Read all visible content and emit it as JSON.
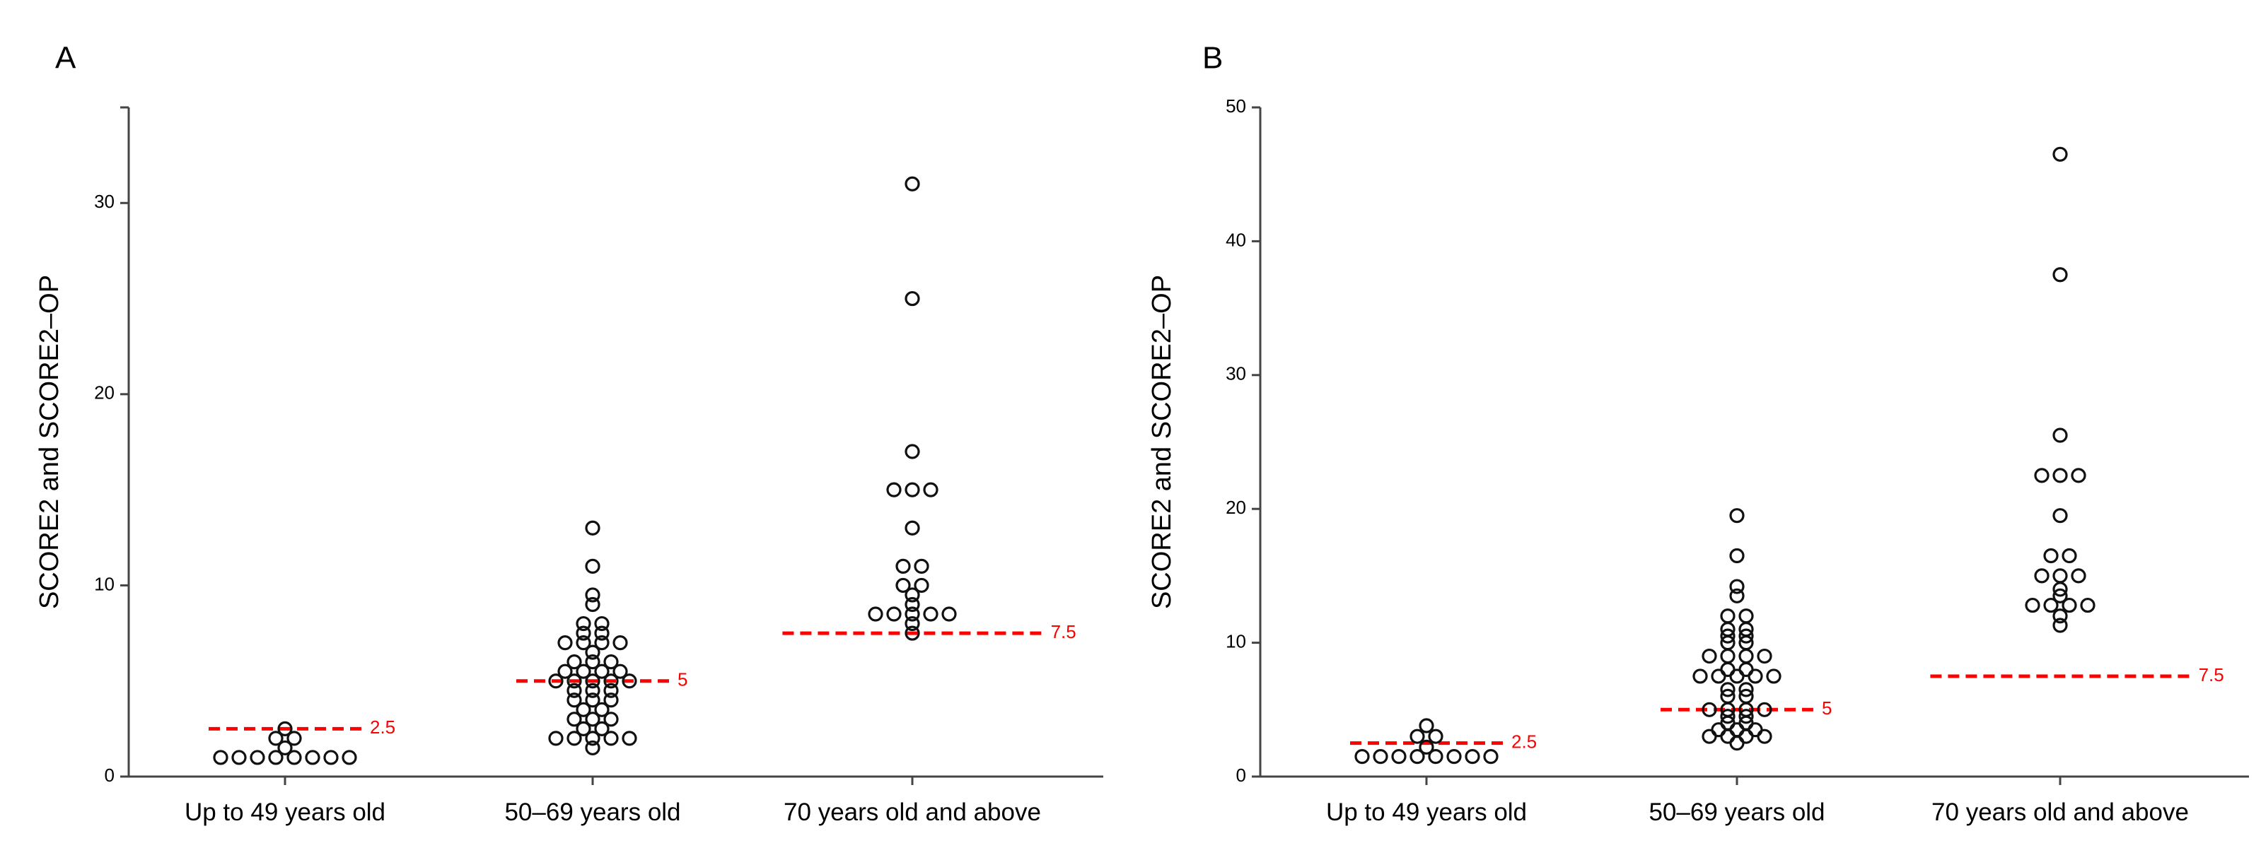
{
  "chart_data": [
    {
      "type": "scatter",
      "panel_label": "A",
      "ylabel": "SCORE2 and SCORE2–OP",
      "xlabel": "",
      "ylim": [
        0,
        35
      ],
      "yticks": [
        0,
        10,
        20,
        30
      ],
      "grid": false,
      "categories": [
        "Up to 49 years old",
        "50–69 years old",
        "70 years old and above"
      ],
      "series": [
        {
          "name": "Up to 49 years old",
          "values": [
            2.5,
            2.0,
            2.0,
            1.5,
            1.0,
            1.0,
            1.0,
            1.0,
            1.0,
            1.0,
            1.0,
            1.0
          ]
        },
        {
          "name": "50–69 years old",
          "values": [
            13,
            11,
            9.5,
            9,
            8,
            8,
            7.5,
            7.5,
            7,
            7,
            7,
            7,
            6.5,
            6,
            6,
            6,
            5.5,
            5.5,
            5.5,
            5.5,
            5,
            5,
            5,
            5,
            5,
            4.5,
            4.5,
            4.5,
            4,
            4,
            4,
            3.5,
            3.5,
            3,
            3,
            3,
            2.5,
            2.5,
            2,
            2,
            2,
            2,
            2,
            1.5
          ]
        },
        {
          "name": "70 years old and above",
          "values": [
            31,
            25,
            17,
            15,
            15,
            15,
            13,
            11,
            11,
            10,
            10,
            9.5,
            9,
            8.5,
            8.5,
            8.5,
            8.5,
            8.5,
            8,
            7.5
          ]
        }
      ],
      "thresholds": [
        {
          "category": "Up to 49 years old",
          "value": 2.5,
          "label": "2.5"
        },
        {
          "category": "50–69 years old",
          "value": 5,
          "label": "5"
        },
        {
          "category": "70 years old and above",
          "value": 7.5,
          "label": "7.5"
        }
      ],
      "threshold_color": "#ff0000",
      "marker": "open-circle"
    },
    {
      "type": "scatter",
      "panel_label": "B",
      "ylabel": "SCORE2 and SCORE2–OP",
      "xlabel": "",
      "ylim": [
        0,
        50
      ],
      "yticks": [
        0,
        10,
        20,
        30,
        40,
        50
      ],
      "grid": false,
      "categories": [
        "Up to 49 years old",
        "50–69 years old",
        "70 years old and above"
      ],
      "series": [
        {
          "name": "Up to 49 years old",
          "values": [
            3.8,
            3.0,
            3.0,
            2.2,
            1.5,
            1.5,
            1.5,
            1.5,
            1.5,
            1.5,
            1.5,
            1.5
          ]
        },
        {
          "name": "50–69 years old",
          "values": [
            19.5,
            16.5,
            14.2,
            13.5,
            12,
            12,
            11,
            11,
            10.5,
            10.5,
            10,
            10,
            9,
            9,
            9,
            9,
            8,
            8,
            7.5,
            7.5,
            7.5,
            7.5,
            7.5,
            6.5,
            6.5,
            6,
            6,
            5,
            5,
            5,
            5,
            4.5,
            4.5,
            4,
            4,
            3.5,
            3.5,
            3.5,
            3,
            3,
            3,
            3,
            2.5
          ]
        },
        {
          "name": "70 years old and above",
          "values": [
            46.5,
            37.5,
            25.5,
            22.5,
            22.5,
            22.5,
            19.5,
            16.5,
            16.5,
            15,
            15,
            15,
            14,
            13.5,
            12.8,
            12.8,
            12.8,
            12.8,
            12,
            11.3
          ]
        }
      ],
      "thresholds": [
        {
          "category": "Up to 49 years old",
          "value": 2.5,
          "label": "2.5"
        },
        {
          "category": "50–69 years old",
          "value": 5,
          "label": "5"
        },
        {
          "category": "70 years old and above",
          "value": 7.5,
          "label": "7.5"
        }
      ],
      "threshold_color": "#ff0000",
      "marker": "open-circle"
    }
  ]
}
